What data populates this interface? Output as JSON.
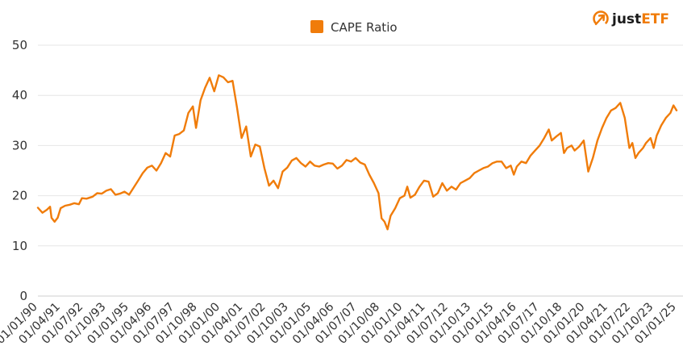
{
  "brand": {
    "name_prefix": "just",
    "name_suffix": "ETF",
    "accent": "#F07C0A",
    "icon": "justetf-logo-icon"
  },
  "chart_data": {
    "type": "line",
    "title": "",
    "xlabel": "",
    "ylabel": "",
    "ylim": [
      0,
      50
    ],
    "y_ticks": [
      0,
      10,
      20,
      30,
      40,
      50
    ],
    "grid": true,
    "legend": "top-center",
    "x_range": [
      "1990-01-01",
      "2025-01-01"
    ],
    "x_tick_labels": [
      {
        "date": "1990-01-01",
        "label": "01/01/90"
      },
      {
        "date": "1991-04-01",
        "label": "01/04/91"
      },
      {
        "date": "1992-07-01",
        "label": "01/07/92"
      },
      {
        "date": "1993-10-01",
        "label": "01/10/93"
      },
      {
        "date": "1995-01-01",
        "label": "01/01/95"
      },
      {
        "date": "1996-04-01",
        "label": "01/04/96"
      },
      {
        "date": "1997-07-01",
        "label": "01/07/97"
      },
      {
        "date": "1998-10-01",
        "label": "01/10/98"
      },
      {
        "date": "2000-01-01",
        "label": "01/01/00"
      },
      {
        "date": "2001-04-01",
        "label": "01/04/01"
      },
      {
        "date": "2002-07-01",
        "label": "01/07/02"
      },
      {
        "date": "2003-10-01",
        "label": "01/10/03"
      },
      {
        "date": "2005-01-01",
        "label": "01/01/05"
      },
      {
        "date": "2006-04-01",
        "label": "01/04/06"
      },
      {
        "date": "2007-07-01",
        "label": "01/07/07"
      },
      {
        "date": "2008-10-01",
        "label": "01/10/08"
      },
      {
        "date": "2010-01-01",
        "label": "01/01/10"
      },
      {
        "date": "2011-04-01",
        "label": "01/04/11"
      },
      {
        "date": "2012-07-01",
        "label": "01/07/12"
      },
      {
        "date": "2013-10-01",
        "label": "01/10/13"
      },
      {
        "date": "2015-01-01",
        "label": "01/01/15"
      },
      {
        "date": "2016-04-01",
        "label": "01/04/16"
      },
      {
        "date": "2017-07-01",
        "label": "01/07/17"
      },
      {
        "date": "2018-10-01",
        "label": "01/10/18"
      },
      {
        "date": "2020-01-01",
        "label": "01/01/20"
      },
      {
        "date": "2021-04-01",
        "label": "01/04/21"
      },
      {
        "date": "2022-07-01",
        "label": "01/07/22"
      },
      {
        "date": "2023-10-01",
        "label": "01/10/23"
      },
      {
        "date": "2025-01-01",
        "label": "01/01/25"
      }
    ],
    "series": [
      {
        "name": "CAPE Ratio",
        "color": "#F07C0A",
        "points": [
          [
            "1990-01-01",
            17.6
          ],
          [
            "1990-04-01",
            16.6
          ],
          [
            "1990-07-01",
            17.2
          ],
          [
            "1990-09-01",
            17.8
          ],
          [
            "1990-10-01",
            15.6
          ],
          [
            "1990-12-01",
            14.8
          ],
          [
            "1991-02-01",
            15.6
          ],
          [
            "1991-04-01",
            17.5
          ],
          [
            "1991-07-01",
            18.0
          ],
          [
            "1991-10-01",
            18.2
          ],
          [
            "1992-01-01",
            18.5
          ],
          [
            "1992-04-01",
            18.3
          ],
          [
            "1992-06-01",
            19.5
          ],
          [
            "1992-09-01",
            19.4
          ],
          [
            "1993-01-01",
            19.8
          ],
          [
            "1993-04-01",
            20.5
          ],
          [
            "1993-07-01",
            20.4
          ],
          [
            "1993-10-01",
            21.0
          ],
          [
            "1994-01-01",
            21.3
          ],
          [
            "1994-04-01",
            20.2
          ],
          [
            "1994-07-01",
            20.4
          ],
          [
            "1994-10-01",
            20.8
          ],
          [
            "1995-01-01",
            20.2
          ],
          [
            "1995-04-01",
            21.6
          ],
          [
            "1995-07-01",
            23.0
          ],
          [
            "1995-10-01",
            24.5
          ],
          [
            "1996-01-01",
            25.6
          ],
          [
            "1996-04-01",
            26.0
          ],
          [
            "1996-07-01",
            25.0
          ],
          [
            "1996-10-01",
            26.5
          ],
          [
            "1997-01-01",
            28.5
          ],
          [
            "1997-04-01",
            27.8
          ],
          [
            "1997-07-01",
            32.0
          ],
          [
            "1997-10-01",
            32.3
          ],
          [
            "1998-01-01",
            33.0
          ],
          [
            "1998-04-01",
            36.5
          ],
          [
            "1998-07-01",
            37.8
          ],
          [
            "1998-09-01",
            33.5
          ],
          [
            "1998-12-01",
            39.0
          ],
          [
            "1999-03-01",
            41.5
          ],
          [
            "1999-06-01",
            43.5
          ],
          [
            "1999-09-01",
            40.8
          ],
          [
            "1999-12-01",
            44.0
          ],
          [
            "2000-03-01",
            43.6
          ],
          [
            "2000-06-01",
            42.6
          ],
          [
            "2000-09-01",
            42.9
          ],
          [
            "2000-12-01",
            37.5
          ],
          [
            "2001-03-01",
            31.5
          ],
          [
            "2001-06-01",
            33.8
          ],
          [
            "2001-09-01",
            27.8
          ],
          [
            "2001-12-01",
            30.2
          ],
          [
            "2002-03-01",
            29.8
          ],
          [
            "2002-06-01",
            25.5
          ],
          [
            "2002-09-01",
            22.0
          ],
          [
            "2002-12-01",
            23.0
          ],
          [
            "2003-03-01",
            21.5
          ],
          [
            "2003-06-01",
            24.8
          ],
          [
            "2003-09-01",
            25.6
          ],
          [
            "2003-12-01",
            27.0
          ],
          [
            "2004-03-01",
            27.5
          ],
          [
            "2004-06-01",
            26.5
          ],
          [
            "2004-09-01",
            25.8
          ],
          [
            "2004-12-01",
            26.8
          ],
          [
            "2005-03-01",
            26.0
          ],
          [
            "2005-06-01",
            25.8
          ],
          [
            "2005-09-01",
            26.2
          ],
          [
            "2005-12-01",
            26.5
          ],
          [
            "2006-03-01",
            26.4
          ],
          [
            "2006-06-01",
            25.4
          ],
          [
            "2006-09-01",
            26.0
          ],
          [
            "2006-12-01",
            27.1
          ],
          [
            "2007-03-01",
            26.8
          ],
          [
            "2007-06-01",
            27.5
          ],
          [
            "2007-09-01",
            26.6
          ],
          [
            "2007-12-01",
            26.2
          ],
          [
            "2008-03-01",
            24.2
          ],
          [
            "2008-06-01",
            22.5
          ],
          [
            "2008-09-01",
            20.5
          ],
          [
            "2008-11-01",
            15.5
          ],
          [
            "2009-01-01",
            14.8
          ],
          [
            "2009-03-01",
            13.3
          ],
          [
            "2009-05-01",
            16.0
          ],
          [
            "2009-08-01",
            17.5
          ],
          [
            "2009-11-01",
            19.5
          ],
          [
            "2010-02-01",
            20.0
          ],
          [
            "2010-04-01",
            21.8
          ],
          [
            "2010-06-01",
            19.6
          ],
          [
            "2010-09-01",
            20.2
          ],
          [
            "2010-12-01",
            21.8
          ],
          [
            "2011-03-01",
            23.0
          ],
          [
            "2011-06-01",
            22.8
          ],
          [
            "2011-09-01",
            19.8
          ],
          [
            "2011-12-01",
            20.5
          ],
          [
            "2012-03-01",
            22.5
          ],
          [
            "2012-06-01",
            21.0
          ],
          [
            "2012-09-01",
            21.8
          ],
          [
            "2012-12-01",
            21.2
          ],
          [
            "2013-03-01",
            22.5
          ],
          [
            "2013-06-01",
            23.0
          ],
          [
            "2013-09-01",
            23.5
          ],
          [
            "2013-12-01",
            24.5
          ],
          [
            "2014-03-01",
            25.0
          ],
          [
            "2014-06-01",
            25.5
          ],
          [
            "2014-09-01",
            25.8
          ],
          [
            "2014-12-01",
            26.5
          ],
          [
            "2015-03-01",
            26.8
          ],
          [
            "2015-06-01",
            26.8
          ],
          [
            "2015-09-01",
            25.5
          ],
          [
            "2015-12-01",
            26.0
          ],
          [
            "2016-02-01",
            24.2
          ],
          [
            "2016-04-01",
            25.8
          ],
          [
            "2016-07-01",
            26.8
          ],
          [
            "2016-10-01",
            26.5
          ],
          [
            "2017-01-01",
            28.0
          ],
          [
            "2017-04-01",
            29.0
          ],
          [
            "2017-07-01",
            30.0
          ],
          [
            "2017-10-01",
            31.5
          ],
          [
            "2018-01-01",
            33.2
          ],
          [
            "2018-03-01",
            31.0
          ],
          [
            "2018-06-01",
            31.8
          ],
          [
            "2018-09-01",
            32.5
          ],
          [
            "2018-11-01",
            28.5
          ],
          [
            "2019-01-01",
            29.5
          ],
          [
            "2019-04-01",
            30.0
          ],
          [
            "2019-06-01",
            29.0
          ],
          [
            "2019-09-01",
            29.8
          ],
          [
            "2019-12-01",
            31.0
          ],
          [
            "2020-03-01",
            24.8
          ],
          [
            "2020-06-01",
            27.5
          ],
          [
            "2020-09-01",
            31.0
          ],
          [
            "2020-12-01",
            33.5
          ],
          [
            "2021-03-01",
            35.5
          ],
          [
            "2021-06-01",
            37.0
          ],
          [
            "2021-09-01",
            37.5
          ],
          [
            "2021-12-01",
            38.5
          ],
          [
            "2022-03-01",
            35.5
          ],
          [
            "2022-06-01",
            29.5
          ],
          [
            "2022-08-01",
            30.5
          ],
          [
            "2022-10-01",
            27.5
          ],
          [
            "2022-12-01",
            28.5
          ],
          [
            "2023-03-01",
            29.5
          ],
          [
            "2023-05-01",
            30.5
          ],
          [
            "2023-08-01",
            31.5
          ],
          [
            "2023-10-01",
            29.5
          ],
          [
            "2023-12-01",
            32.0
          ],
          [
            "2024-03-01",
            34.0
          ],
          [
            "2024-06-01",
            35.5
          ],
          [
            "2024-09-01",
            36.5
          ],
          [
            "2024-11-01",
            38.0
          ],
          [
            "2025-01-01",
            37.0
          ]
        ]
      }
    ]
  }
}
